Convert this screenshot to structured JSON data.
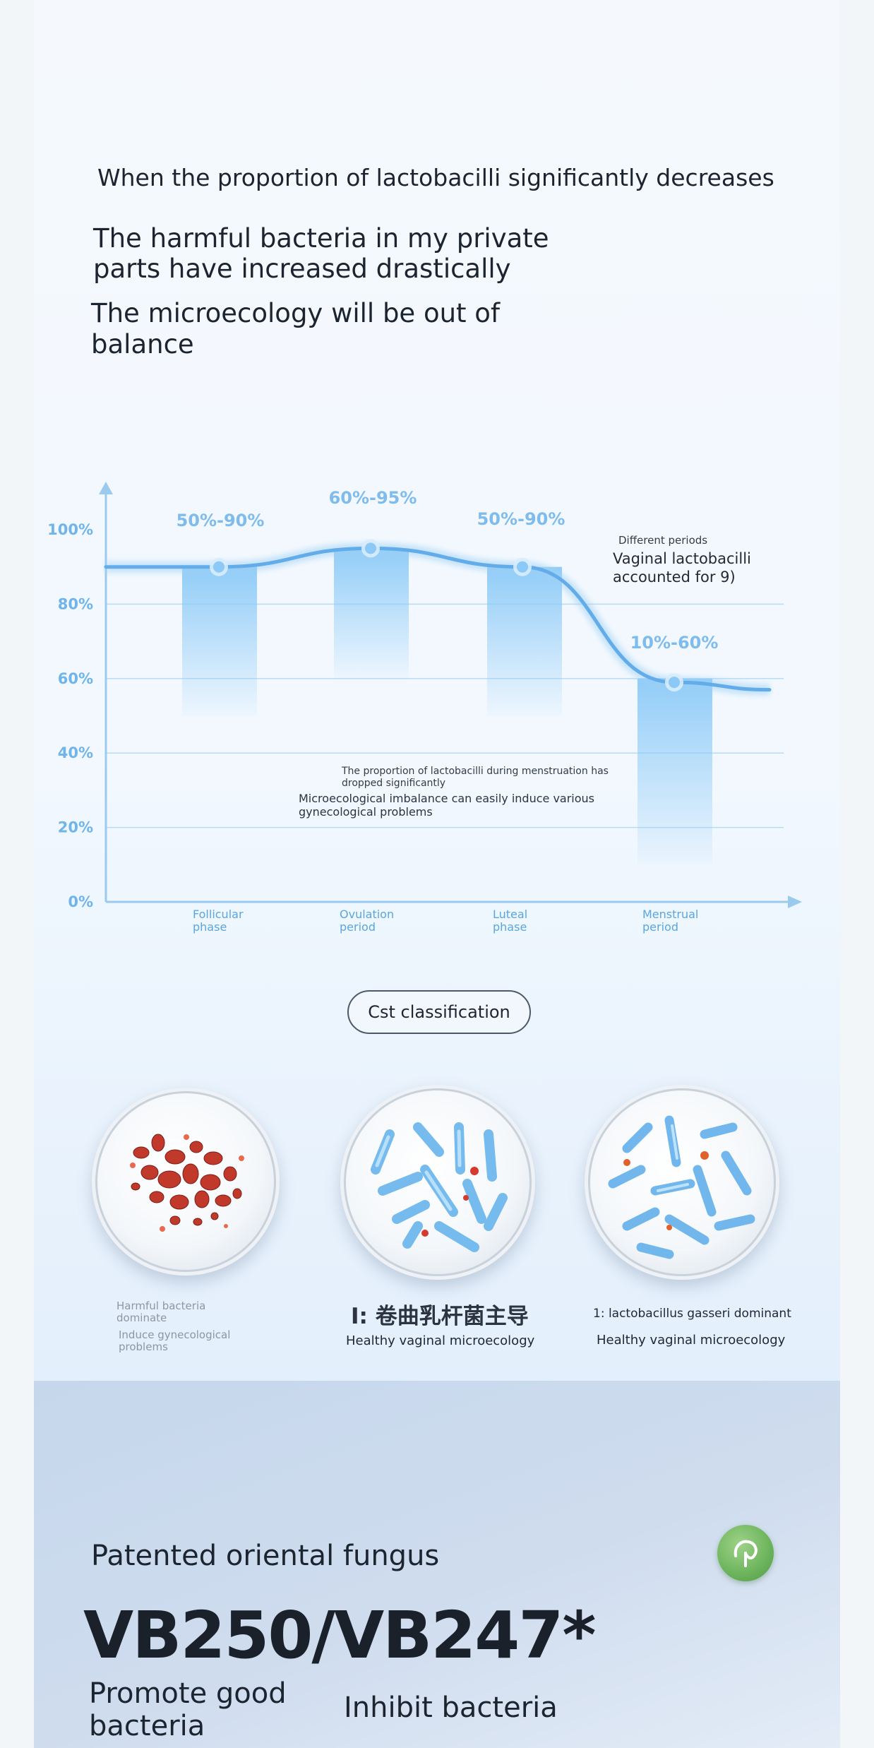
{
  "intro": {
    "line1": "When the proportion of lactobacilli significantly decreases",
    "line2": "The harmful bacteria in my private parts have increased drastically",
    "line3": "The microecology will be out of balance"
  },
  "chart_data": {
    "type": "bar",
    "categories": [
      "Follicular phase",
      "Ovulation period",
      "Luteal phase",
      "Menstrual period"
    ],
    "ranges": [
      [
        50,
        90
      ],
      [
        60,
        95
      ],
      [
        50,
        90
      ],
      [
        10,
        60
      ]
    ],
    "range_labels": [
      "50%-90%",
      "60%-95%",
      "50%-90%",
      "10%-60%"
    ],
    "curve_points": [
      90,
      95,
      90,
      59
    ],
    "yticks": [
      "0%",
      "20%",
      "40%",
      "60%",
      "80%",
      "100%"
    ],
    "ylim": [
      0,
      100
    ],
    "title": "Different periods",
    "subtitle": "Vaginal lactobacilli accounted for 9)",
    "annotation_small": "The proportion of lactobacilli during menstruation has dropped significantly",
    "annotation": "Microecological imbalance can easily induce various gynecological problems",
    "grid": true,
    "colors": {
      "bar": "#8ccaf7",
      "curve": "#62acea",
      "axis": "#9acbef",
      "tick_text": "#6fb4ea",
      "category_text": "#5aa6de"
    }
  },
  "cst": {
    "button_label": "Cst classification",
    "dish1": {
      "line1": "Harmful bacteria dominate",
      "line2": "Induce gynecological problems"
    },
    "dish2": {
      "title": "I: 卷曲乳杆菌主导",
      "subtitle": "Healthy vaginal microecology"
    },
    "dish3": {
      "title": "1: lactobacillus gasseri dominant",
      "subtitle": "Healthy vaginal microecology"
    }
  },
  "bottom": {
    "patent": "Patented oriental fungus",
    "strain": "VB250/VB247*",
    "promote": "Promote good bacteria",
    "inhibit": "Inhibit bacteria",
    "logo_icon": "brand-leaf-icon"
  }
}
